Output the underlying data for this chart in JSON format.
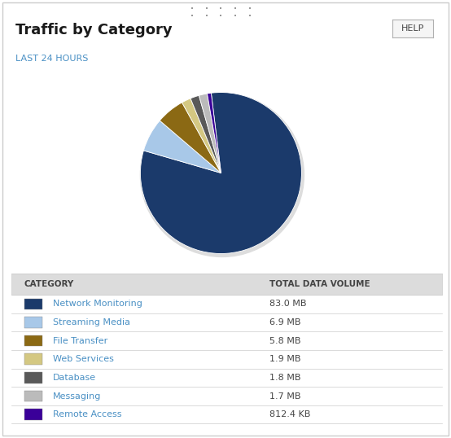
{
  "title": "Traffic by Category",
  "subtitle": "LAST 24 HOURS",
  "help_label": "HELP",
  "categories": [
    "Network Monitoring",
    "Streaming Media",
    "File Transfer",
    "Web Services",
    "Database",
    "Messaging",
    "Remote Access"
  ],
  "values": [
    83.0,
    6.9,
    5.8,
    1.9,
    1.8,
    1.7,
    0.8124
  ],
  "labels": [
    "83.0 MB",
    "6.9 MB",
    "5.8 MB",
    "1.9 MB",
    "1.8 MB",
    "1.7 MB",
    "812.4 KB"
  ],
  "colors": [
    "#1b3a6b",
    "#a8c8e8",
    "#8b6914",
    "#d4c882",
    "#595959",
    "#bbbbbb",
    "#3a0099"
  ],
  "col_header1": "CATEGORY",
  "col_header2": "TOTAL DATA VOLUME",
  "background_color": "#ffffff",
  "table_header_bg": "#dcdcdc",
  "table_border_color": "#cccccc",
  "title_color": "#1a1a1a",
  "subtitle_color": "#4a90c4",
  "text_color": "#444444",
  "link_color": "#4a90c4",
  "border_color": "#cccccc",
  "dot_color": "#999999",
  "pie_startangle": 90,
  "pie_shadow_color": "#dddddd"
}
